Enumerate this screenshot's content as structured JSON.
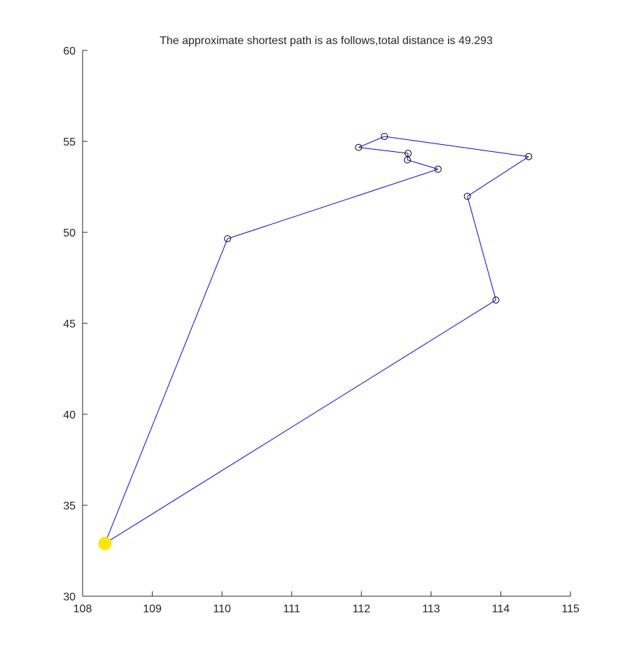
{
  "chart_data": {
    "type": "line",
    "title": "The approximate shortest path is as follows,total distance is 49.293",
    "xlabel": "",
    "ylabel": "",
    "xlim": [
      108,
      115
    ],
    "ylim": [
      30,
      60
    ],
    "x_ticks": [
      108,
      109,
      110,
      111,
      112,
      113,
      114,
      115
    ],
    "y_ticks": [
      30,
      35,
      40,
      45,
      50,
      55,
      60
    ],
    "grid": false,
    "legend": "none",
    "start_point": {
      "x": 108.32,
      "y": 32.9
    },
    "series": [
      {
        "marker": "circle",
        "x": [
          108.32,
          110.08,
          113.1,
          112.66,
          112.67,
          111.96,
          112.33,
          114.4,
          113.52,
          113.93,
          108.32
        ],
        "y": [
          32.9,
          49.65,
          53.47,
          53.98,
          54.34,
          54.67,
          55.27,
          54.16,
          51.98,
          46.28,
          32.9
        ]
      }
    ],
    "colors": {
      "path": "#0000ff",
      "marker_edge": "#000000",
      "start_marker": "#ffe600",
      "axis": "#262626"
    }
  }
}
